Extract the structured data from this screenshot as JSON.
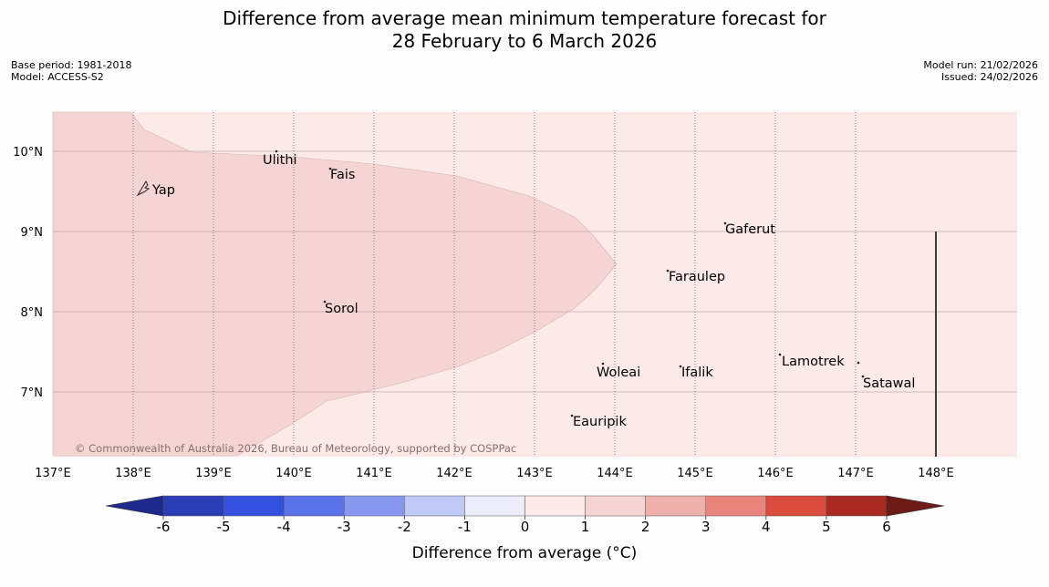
{
  "title": {
    "line1": "Difference from average mean minimum temperature forecast for",
    "line2": "28 February to 6 March 2026"
  },
  "meta": {
    "base_period": "Base period: 1981-2018",
    "model": "Model: ACCESS-S2",
    "model_run": "Model run: 21/02/2026",
    "issued": "Issued: 24/02/2026"
  },
  "map": {
    "lon_labels": [
      "137°E",
      "138°E",
      "139°E",
      "140°E",
      "141°E",
      "142°E",
      "143°E",
      "144°E",
      "145°E",
      "146°E",
      "147°E",
      "148°E"
    ],
    "lat_labels": [
      "10°N",
      "9°N",
      "8°N",
      "7°N"
    ],
    "places": [
      "Yap",
      "Ulithi",
      "Fais",
      "Sorol",
      "Gaferut",
      "Faraulep",
      "Woleai",
      "Ifalik",
      "Lamotrek",
      "Satawal",
      "Eauripik"
    ],
    "copyright": "© Commonwealth of Australia 2026, Bureau of Meteorology, supported by COSPPac",
    "colors": {
      "background_0_1": "#fbeae8",
      "shade_1_2": "#f5d5d3",
      "grid": "#c9a9a7"
    }
  },
  "colorbar": {
    "ticks": [
      "-6",
      "-5",
      "-4",
      "-3",
      "-2",
      "-1",
      "0",
      "1",
      "2",
      "3",
      "4",
      "5",
      "6"
    ],
    "label": "Difference from average (°C)",
    "colors": [
      "#1d2a8c",
      "#2a3db5",
      "#3350de",
      "#5a72e8",
      "#8898ee",
      "#c0c8f6",
      "#ebedfb",
      "#fbeae8",
      "#f5d5d3",
      "#eeb0ab",
      "#e8847c",
      "#db4b3e",
      "#a82a22",
      "#6e1a17"
    ]
  }
}
